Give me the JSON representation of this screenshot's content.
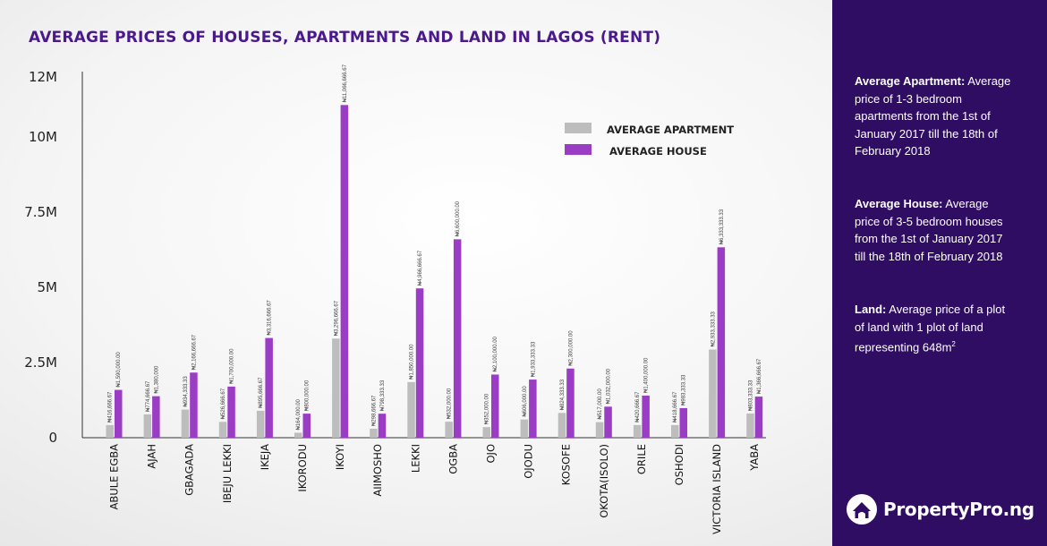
{
  "title": "AVERAGE PRICES OF HOUSES, APARTMENTS AND LAND IN LAGOS (RENT)",
  "colors": {
    "apartment": "#bdbdbd",
    "house": "#9b3cc4",
    "title": "#4a1a8c",
    "panel": "#2f0d63"
  },
  "chart_data": {
    "type": "bar",
    "title": "AVERAGE PRICES OF HOUSES, APARTMENTS AND LAND IN LAGOS (RENT)",
    "xlabel": "",
    "ylabel": "",
    "ylim": [
      0,
      12000000
    ],
    "yticks": [
      0,
      2500000,
      5000000,
      7500000,
      10000000,
      12000000
    ],
    "ytick_labels": [
      "0",
      "2.5M",
      "5M",
      "7.5M",
      "10M",
      "12M"
    ],
    "legend_position": "top-right",
    "categories": [
      "ABULE EGBA",
      "AJAH",
      "GBAGADA",
      "IBEJU LEKKI",
      "IKEJA",
      "IKORODU",
      "IKOYI",
      "AIIMOSHO",
      "LEKKI",
      "OGBA",
      "OJO",
      "OJODU",
      "KOSOFE",
      "OKOTA(ISOLO)",
      "ORILE",
      "OSHODI",
      "VICTORIA ISLAND",
      "YABA"
    ],
    "series": [
      {
        "name": "AVERAGE APARTMENT",
        "values": [
          416666.67,
          774666.67,
          934333.33,
          526666.67,
          895666.67,
          164000,
          3296666.67,
          298666.67,
          1850000,
          532000,
          352000,
          606000,
          824333.33,
          517000,
          420666.67,
          418666.67,
          2933333.33,
          803333.33
        ],
        "labels": [
          "₦416,666.67",
          "₦774,666.67",
          "₦934,333.33",
          "₦526,666.67",
          "₦895,666.67",
          "₦164,000.00",
          "₦3,296,666.67",
          "₦298,666.67",
          "₦1,850,000.00",
          "₦532,000.00",
          "₦352,000.00",
          "₦606,000.00",
          "₦824,333.33",
          "₦517,000.00",
          "₦420,666.67",
          "₦418,666.67",
          "₦2,933,333.33",
          "₦803,333.33"
        ]
      },
      {
        "name": "AVERAGE HOUSE",
        "values": [
          1590000,
          1380000,
          2166666.67,
          1700000,
          3316666.67,
          800000,
          11066666.67,
          798333.33,
          4966666.67,
          6600000,
          2100000,
          1933333.33,
          2300000,
          1032000,
          1400000,
          983333.33,
          6333333.33,
          1366666.67
        ],
        "labels": [
          "₦1,590,000.00",
          "₦1,380,000",
          "₦2,166,666.67",
          "₦1,700,000.00",
          "₦3,316,666.67",
          "₦800,000.00",
          "₦11,066,666.67",
          "₦798,333.33",
          "₦4,966,666.67",
          "₦6,600,000.00",
          "₦2,100,000.00",
          "₦1,933,333.33",
          "₦2,300,000.00",
          "₦1,032,000.00",
          "₦1,400,000.00",
          "₦983,333.33",
          "₦6,333,333.33",
          "₦1,366,666.67"
        ]
      }
    ]
  },
  "side_panel": {
    "apartment_heading": "Average Apartment:",
    "apartment_text": "Average price of 1-3 bedroom apartments from the 1st of January 2017 till the 18th of February 2018",
    "house_heading": "Average House:",
    "house_text": "Average price of  3-5 bedroom houses from the 1st of January 2017 till the 18th of February 2018",
    "land_heading": "Land:",
    "land_text": "Average price of a plot of land with 1 plot of land representing 648m",
    "land_superscript": "2"
  },
  "brand": {
    "name": "PropertyPro.ng",
    "logo_icon": "house-in-circle-icon"
  }
}
